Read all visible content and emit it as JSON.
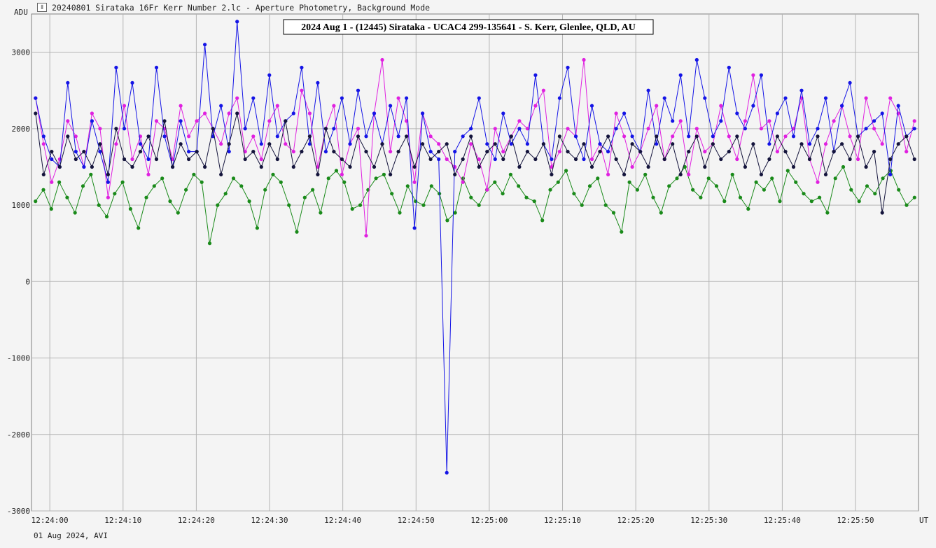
{
  "window": {
    "icon": "lightcurve-app-icon",
    "title": "20240801 Sirataka 16Fr Kerr Number 2.lc - Aperture Photometry, Background Mode"
  },
  "footer": "01 Aug 2024, AVI",
  "colors": {
    "background": "#f4f4f4",
    "grid": "#b4b4b4",
    "axis": "#808080"
  },
  "chart_data": {
    "type": "line",
    "title": "2024 Aug 1 - (12445) Sirataka - UCAC4 299-135641 - S. Kerr, Glenlee, QLD, AU",
    "ylabel": "ADU",
    "xlabel": "UT",
    "ylim": [
      -3000,
      3500
    ],
    "xlim": [
      "12:23:57.5",
      "12:25:58.6"
    ],
    "y_ticks": [
      3000,
      2000,
      1000,
      0,
      -1000,
      -2000,
      -3000
    ],
    "x_ticks": [
      "12:24:00",
      "12:24:10",
      "12:24:20",
      "12:24:30",
      "12:24:40",
      "12:24:50",
      "12:25:00",
      "12:25:10",
      "12:25:20",
      "12:25:30",
      "12:25:40",
      "12:25:50"
    ],
    "grid": true,
    "series": [
      {
        "color": "#1a8a1a",
        "values": [
          1050,
          1200,
          950,
          1300,
          1100,
          900,
          1250,
          1400,
          1000,
          850,
          1150,
          1300,
          950,
          700,
          1100,
          1250,
          1350,
          1050,
          900,
          1200,
          1400,
          1300,
          500,
          1000,
          1150,
          1350,
          1250,
          1050,
          700,
          1200,
          1400,
          1300,
          1000,
          650,
          1100,
          1200,
          900,
          1350,
          1450,
          1300,
          950,
          1000,
          1200,
          1350,
          1400,
          1150,
          900,
          1250,
          1050,
          1000,
          1250,
          1150,
          800,
          900,
          1350,
          1100,
          1000,
          1200,
          1300,
          1150,
          1400,
          1250,
          1100,
          1050,
          800,
          1200,
          1300,
          1450,
          1150,
          1000,
          1250,
          1350,
          1000,
          900,
          650,
          1300,
          1200,
          1400,
          1100,
          900,
          1250,
          1350,
          1500,
          1200,
          1100,
          1350,
          1250,
          1050,
          1400,
          1100,
          950,
          1300,
          1200,
          1350,
          1050,
          1450,
          1300,
          1150,
          1050,
          1100,
          900,
          1350,
          1500,
          1200,
          1050,
          1250,
          1150,
          1350,
          1450,
          1200,
          1000,
          1100
        ]
      },
      {
        "color": "#e020e0",
        "values": [
          2400,
          1800,
          1300,
          1600,
          2100,
          1900,
          1500,
          2200,
          2000,
          1100,
          1800,
          2300,
          1600,
          1900,
          1400,
          2100,
          2000,
          1600,
          2300,
          1900,
          2100,
          2200,
          2000,
          1800,
          2200,
          2400,
          1700,
          1900,
          1600,
          2100,
          2300,
          1800,
          1700,
          2500,
          2200,
          1500,
          2000,
          2300,
          1400,
          1800,
          2000,
          600,
          2200,
          2900,
          1700,
          2400,
          2100,
          1300,
          2200,
          1900,
          1800,
          1600,
          1500,
          1300,
          1800,
          1600,
          1200,
          2000,
          1700,
          1900,
          2100,
          2000,
          2300,
          2500,
          1500,
          1700,
          2000,
          1900,
          2900,
          1600,
          1800,
          1400,
          2200,
          1900,
          1500,
          1700,
          2000,
          2300,
          1600,
          1900,
          2100,
          1400,
          2000,
          1700,
          1800,
          2300,
          1900,
          1600,
          2100,
          2700,
          2000,
          2100,
          1700,
          1900,
          2000,
          2400,
          1600,
          1300,
          1800,
          2100,
          2300,
          1900,
          1600,
          2400,
          2000,
          1800,
          2400,
          2200,
          1700,
          2100
        ]
      },
      {
        "color": "#1414e6",
        "values": [
          2400,
          1900,
          1600,
          1500,
          2600,
          1700,
          1500,
          2100,
          1700,
          1300,
          2800,
          2000,
          2600,
          1800,
          1600,
          2800,
          1900,
          1500,
          2100,
          1700,
          1700,
          3100,
          1900,
          2300,
          1700,
          3400,
          2000,
          2400,
          1800,
          2700,
          1900,
          2100,
          2200,
          2800,
          1800,
          2600,
          1700,
          2000,
          2400,
          1800,
          2500,
          1900,
          2200,
          1800,
          2300,
          1900,
          2400,
          700,
          2200,
          1700,
          1600,
          -2500,
          1700,
          1900,
          2000,
          2400,
          1800,
          1600,
          2200,
          1800,
          2000,
          1800,
          2700,
          1800,
          1600,
          2400,
          2800,
          1900,
          1600,
          2300,
          1800,
          1700,
          2000,
          2200,
          1900,
          1700,
          2500,
          1800,
          2400,
          2100,
          2700,
          1900,
          2900,
          2400,
          1900,
          2100,
          2800,
          2200,
          2000,
          2300,
          2700,
          1800,
          2200,
          2400,
          1900,
          2500,
          1800,
          2000,
          2400,
          1700,
          2300,
          2600,
          1900,
          2000,
          2100,
          2200,
          1400,
          2300,
          1900,
          2000
        ]
      },
      {
        "color": "#14143c",
        "values": [
          2200,
          1400,
          1700,
          1500,
          1900,
          1600,
          1700,
          1500,
          1800,
          1400,
          2000,
          1600,
          1500,
          1700,
          1900,
          1600,
          2100,
          1500,
          1800,
          1600,
          1700,
          1500,
          2000,
          1400,
          1800,
          2200,
          1600,
          1700,
          1500,
          1800,
          1600,
          2100,
          1500,
          1700,
          1900,
          1400,
          2000,
          1700,
          1600,
          1500,
          1900,
          1700,
          1500,
          1800,
          1400,
          1700,
          1900,
          1500,
          1800,
          1600,
          1700,
          1800,
          1400,
          1600,
          1900,
          1500,
          1700,
          1800,
          1600,
          1900,
          1500,
          1700,
          1600,
          1800,
          1400,
          1900,
          1700,
          1600,
          1800,
          1500,
          1700,
          1900,
          1600,
          1400,
          1800,
          1700,
          1500,
          1900,
          1600,
          1800,
          1400,
          1700,
          1900,
          1500,
          1800,
          1600,
          1700,
          1900,
          1500,
          1800,
          1400,
          1600,
          1900,
          1700,
          1500,
          1800,
          1600,
          1900,
          1400,
          1700,
          1800,
          1600,
          1900,
          1500,
          1700,
          900,
          1600,
          1800,
          1900,
          1600
        ]
      }
    ]
  }
}
